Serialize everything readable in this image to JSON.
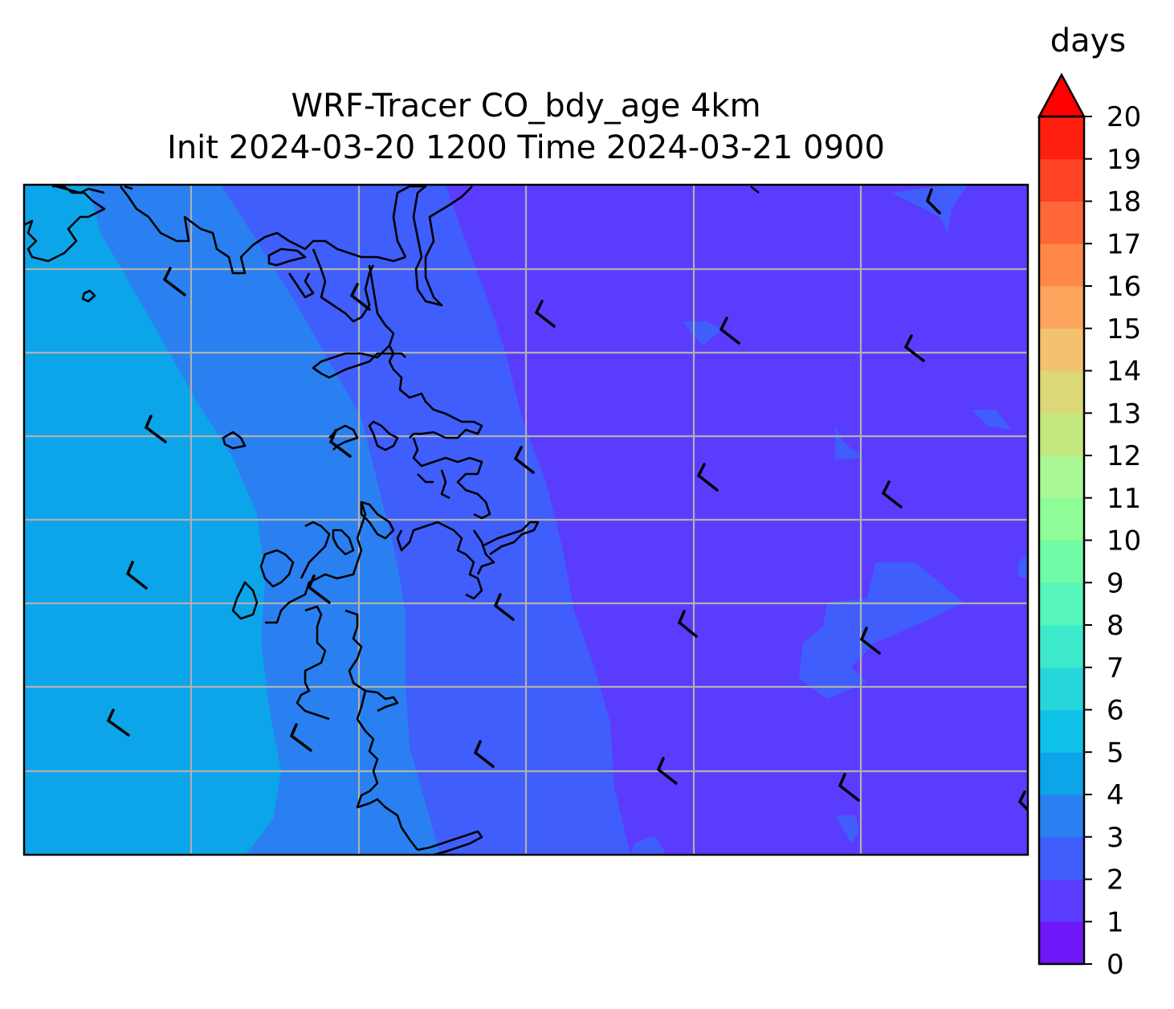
{
  "title": {
    "line1": "WRF-Tracer CO_bdy_age 4km",
    "line2": "Init 2024-03-20 1200 Time 2024-03-21 0900"
  },
  "colorbar": {
    "label": "days",
    "min": 0,
    "max": 20,
    "extend": "max",
    "ticks": [
      "0",
      "1",
      "2",
      "3",
      "4",
      "5",
      "6",
      "7",
      "8",
      "9",
      "10",
      "11",
      "12",
      "13",
      "14",
      "15",
      "16",
      "17",
      "18",
      "19",
      "20"
    ],
    "colors": [
      "#6e17f8",
      "#5a3cff",
      "#3f5efb",
      "#2a80f0",
      "#0ca5ea",
      "#0fc1e6",
      "#26d6d8",
      "#3de9cb",
      "#56f5b9",
      "#70fba7",
      "#8ffd97",
      "#a8f893",
      "#c3e87e",
      "#dcd878",
      "#f2c26e",
      "#fda45d",
      "#ff8748",
      "#ff6638",
      "#ff4426",
      "#ff2010"
    ],
    "extend_color": "#ff0000"
  },
  "map": {
    "layers": [
      "filled-contours",
      "coastline",
      "gridlines",
      "wind-barbs"
    ]
  }
}
